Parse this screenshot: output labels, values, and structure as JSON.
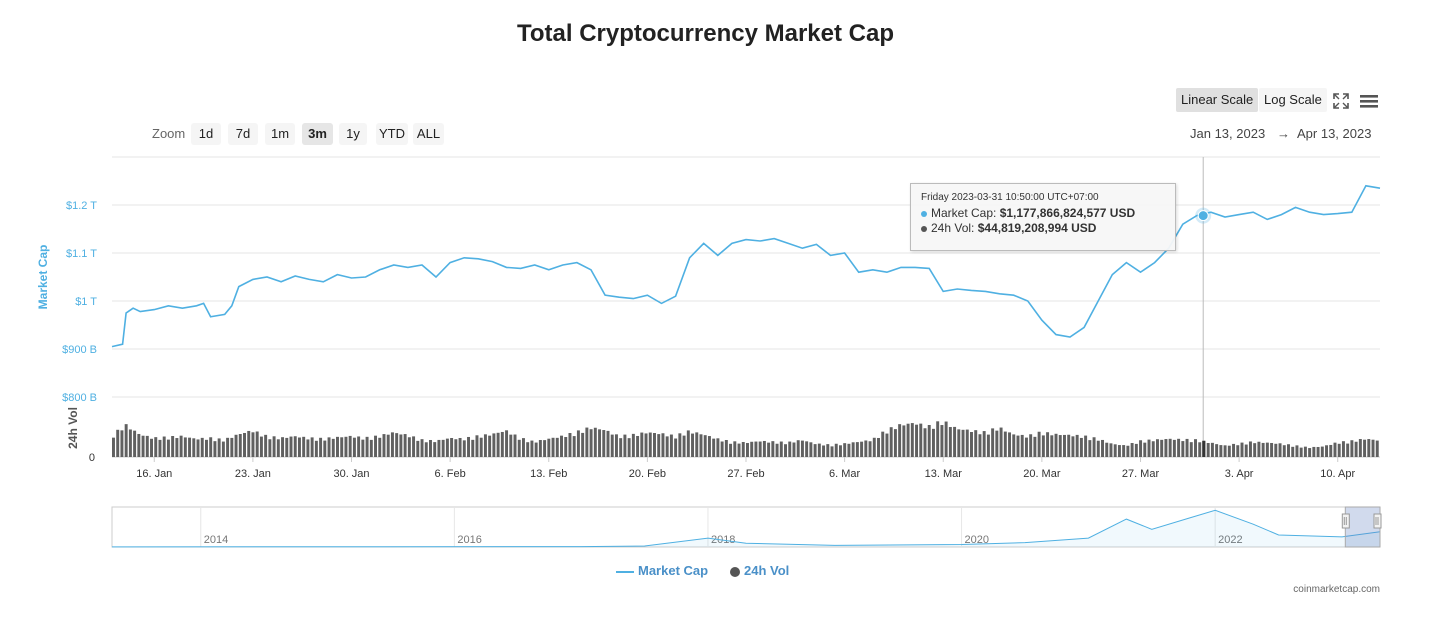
{
  "chart_data": {
    "type": "line",
    "title": "Total Cryptocurrency Market Cap",
    "y_axis_label": "Market Cap",
    "y_ticks": [
      {
        "value": 800,
        "label": "$800 B"
      },
      {
        "value": 900,
        "label": "$900 B"
      },
      {
        "value": 1000,
        "label": "$1 T"
      },
      {
        "value": 1100,
        "label": "$1.1 T"
      },
      {
        "value": 1200,
        "label": "$1.2 T"
      }
    ],
    "ylim": [
      800,
      1300
    ],
    "vol_axis_label": "24h Vol",
    "vol_tick_label": "0",
    "x_ticks": [
      {
        "date": "2023-01-16",
        "label": "16. Jan"
      },
      {
        "date": "2023-01-23",
        "label": "23. Jan"
      },
      {
        "date": "2023-01-30",
        "label": "30. Jan"
      },
      {
        "date": "2023-02-06",
        "label": "6. Feb"
      },
      {
        "date": "2023-02-13",
        "label": "13. Feb"
      },
      {
        "date": "2023-02-20",
        "label": "20. Feb"
      },
      {
        "date": "2023-02-27",
        "label": "27. Feb"
      },
      {
        "date": "2023-03-06",
        "label": "6. Mar"
      },
      {
        "date": "2023-03-13",
        "label": "13. Mar"
      },
      {
        "date": "2023-03-20",
        "label": "20. Mar"
      },
      {
        "date": "2023-03-27",
        "label": "27. Mar"
      },
      {
        "date": "2023-04-03",
        "label": "3. Apr"
      },
      {
        "date": "2023-04-10",
        "label": "10. Apr"
      }
    ],
    "x_range": [
      "2023-01-13",
      "2023-04-13"
    ],
    "grid": true,
    "series": [
      {
        "name": "Market Cap",
        "unit": "billion USD",
        "color": "#4fb0e2",
        "points": [
          [
            "2023-01-13",
            905
          ],
          [
            "2023-01-13T18:00",
            910
          ],
          [
            "2023-01-14",
            975
          ],
          [
            "2023-01-14T12:00",
            985
          ],
          [
            "2023-01-15",
            978
          ],
          [
            "2023-01-16",
            982
          ],
          [
            "2023-01-17",
            990
          ],
          [
            "2023-01-18",
            985
          ],
          [
            "2023-01-19",
            990
          ],
          [
            "2023-01-19T12:00",
            995
          ],
          [
            "2023-01-20",
            967
          ],
          [
            "2023-01-21",
            972
          ],
          [
            "2023-01-21T12:00",
            990
          ],
          [
            "2023-01-22",
            1030
          ],
          [
            "2023-01-23",
            1045
          ],
          [
            "2023-01-24",
            1050
          ],
          [
            "2023-01-25",
            1040
          ],
          [
            "2023-01-26",
            1052
          ],
          [
            "2023-01-27",
            1045
          ],
          [
            "2023-01-28",
            1040
          ],
          [
            "2023-01-29",
            1055
          ],
          [
            "2023-01-30",
            1048
          ],
          [
            "2023-01-31",
            1050
          ],
          [
            "2023-02-01",
            1065
          ],
          [
            "2023-02-02",
            1075
          ],
          [
            "2023-02-03",
            1070
          ],
          [
            "2023-02-04",
            1075
          ],
          [
            "2023-02-05",
            1050
          ],
          [
            "2023-02-06",
            1080
          ],
          [
            "2023-02-07",
            1090
          ],
          [
            "2023-02-08",
            1088
          ],
          [
            "2023-02-09",
            1082
          ],
          [
            "2023-02-10",
            1070
          ],
          [
            "2023-02-11",
            1068
          ],
          [
            "2023-02-12",
            1075
          ],
          [
            "2023-02-13",
            1065
          ],
          [
            "2023-02-14",
            1075
          ],
          [
            "2023-02-15",
            1080
          ],
          [
            "2023-02-16",
            1065
          ],
          [
            "2023-02-17",
            1012
          ],
          [
            "2023-02-18",
            1008
          ],
          [
            "2023-02-19",
            1005
          ],
          [
            "2023-02-20",
            1012
          ],
          [
            "2023-02-21",
            995
          ],
          [
            "2023-02-22",
            1010
          ],
          [
            "2023-02-23",
            1090
          ],
          [
            "2023-02-24",
            1120
          ],
          [
            "2023-02-25",
            1095
          ],
          [
            "2023-02-26",
            1120
          ],
          [
            "2023-02-27",
            1128
          ],
          [
            "2023-02-28",
            1125
          ],
          [
            "2023-03-01",
            1130
          ],
          [
            "2023-03-02",
            1120
          ],
          [
            "2023-03-03",
            1110
          ],
          [
            "2023-03-04",
            1118
          ],
          [
            "2023-03-05",
            1095
          ],
          [
            "2023-03-06",
            1100
          ],
          [
            "2023-03-07",
            1060
          ],
          [
            "2023-03-08",
            1065
          ],
          [
            "2023-03-09",
            1060
          ],
          [
            "2023-03-10",
            1070
          ],
          [
            "2023-03-11",
            1070
          ],
          [
            "2023-03-12",
            1068
          ],
          [
            "2023-03-13",
            1020
          ],
          [
            "2023-03-14",
            1025
          ],
          [
            "2023-03-15",
            1022
          ],
          [
            "2023-03-16",
            1020
          ],
          [
            "2023-03-17",
            1015
          ],
          [
            "2023-03-18",
            1012
          ],
          [
            "2023-03-19",
            1000
          ],
          [
            "2023-03-20",
            960
          ],
          [
            "2023-03-21",
            930
          ],
          [
            "2023-03-22",
            925
          ],
          [
            "2023-03-23",
            945
          ],
          [
            "2023-03-24",
            1000
          ],
          [
            "2023-03-25",
            1055
          ],
          [
            "2023-03-26",
            1080
          ],
          [
            "2023-03-27",
            1060
          ],
          [
            "2023-03-28",
            1080
          ],
          [
            "2023-03-29",
            1110
          ],
          [
            "2023-03-30",
            1160
          ],
          [
            "2023-03-31",
            1178
          ],
          [
            "2023-04-01",
            1185
          ],
          [
            "2023-04-02",
            1175
          ],
          [
            "2023-04-03",
            1180
          ],
          [
            "2023-04-04",
            1185
          ],
          [
            "2023-04-05",
            1170
          ],
          [
            "2023-04-06",
            1180
          ],
          [
            "2023-04-07",
            1195
          ],
          [
            "2023-04-08",
            1185
          ],
          [
            "2023-04-09",
            1180
          ],
          [
            "2023-04-10",
            1182
          ],
          [
            "2023-04-11",
            1185
          ],
          [
            "2023-04-12",
            1240
          ],
          [
            "2023-04-13",
            1235
          ]
        ]
      },
      {
        "name": "24h Vol",
        "unit": "billion USD",
        "color": "#606060",
        "ylim": [
          0,
          130
        ],
        "points": [
          [
            "2023-01-13",
            55
          ],
          [
            "2023-01-14",
            85
          ],
          [
            "2023-01-15",
            60
          ],
          [
            "2023-01-16",
            50
          ],
          [
            "2023-01-17",
            52
          ],
          [
            "2023-01-18",
            55
          ],
          [
            "2023-01-19",
            48
          ],
          [
            "2023-01-20",
            50
          ],
          [
            "2023-01-21",
            45
          ],
          [
            "2023-01-22",
            60
          ],
          [
            "2023-01-23",
            70
          ],
          [
            "2023-01-24",
            55
          ],
          [
            "2023-01-25",
            50
          ],
          [
            "2023-01-26",
            55
          ],
          [
            "2023-01-27",
            50
          ],
          [
            "2023-01-28",
            48
          ],
          [
            "2023-01-29",
            52
          ],
          [
            "2023-01-30",
            55
          ],
          [
            "2023-01-31",
            50
          ],
          [
            "2023-02-01",
            55
          ],
          [
            "2023-02-02",
            65
          ],
          [
            "2023-02-03",
            58
          ],
          [
            "2023-02-04",
            45
          ],
          [
            "2023-02-05",
            42
          ],
          [
            "2023-02-06",
            50
          ],
          [
            "2023-02-07",
            48
          ],
          [
            "2023-02-08",
            55
          ],
          [
            "2023-02-09",
            60
          ],
          [
            "2023-02-10",
            70
          ],
          [
            "2023-02-11",
            50
          ],
          [
            "2023-02-12",
            40
          ],
          [
            "2023-02-13",
            48
          ],
          [
            "2023-02-14",
            55
          ],
          [
            "2023-02-15",
            65
          ],
          [
            "2023-02-16",
            78
          ],
          [
            "2023-02-17",
            72
          ],
          [
            "2023-02-18",
            55
          ],
          [
            "2023-02-19",
            58
          ],
          [
            "2023-02-20",
            65
          ],
          [
            "2023-02-21",
            62
          ],
          [
            "2023-02-22",
            55
          ],
          [
            "2023-02-23",
            68
          ],
          [
            "2023-02-24",
            60
          ],
          [
            "2023-02-25",
            48
          ],
          [
            "2023-02-26",
            40
          ],
          [
            "2023-02-27",
            38
          ],
          [
            "2023-02-28",
            42
          ],
          [
            "2023-03-01",
            40
          ],
          [
            "2023-03-02",
            38
          ],
          [
            "2023-03-03",
            45
          ],
          [
            "2023-03-04",
            35
          ],
          [
            "2023-03-05",
            32
          ],
          [
            "2023-03-06",
            35
          ],
          [
            "2023-03-07",
            40
          ],
          [
            "2023-03-08",
            45
          ],
          [
            "2023-03-09",
            70
          ],
          [
            "2023-03-10",
            85
          ],
          [
            "2023-03-11",
            90
          ],
          [
            "2023-03-12",
            80
          ],
          [
            "2023-03-13",
            95
          ],
          [
            "2023-03-14",
            75
          ],
          [
            "2023-03-15",
            70
          ],
          [
            "2023-03-16",
            65
          ],
          [
            "2023-03-17",
            78
          ],
          [
            "2023-03-18",
            60
          ],
          [
            "2023-03-19",
            55
          ],
          [
            "2023-03-20",
            65
          ],
          [
            "2023-03-21",
            60
          ],
          [
            "2023-03-22",
            58
          ],
          [
            "2023-03-23",
            55
          ],
          [
            "2023-03-24",
            48
          ],
          [
            "2023-03-25",
            35
          ],
          [
            "2023-03-26",
            30
          ],
          [
            "2023-03-27",
            42
          ],
          [
            "2023-03-28",
            45
          ],
          [
            "2023-03-29",
            48
          ],
          [
            "2023-03-30",
            46
          ],
          [
            "2023-03-31",
            44.82
          ],
          [
            "2023-04-01",
            38
          ],
          [
            "2023-04-02",
            30
          ],
          [
            "2023-04-03",
            35
          ],
          [
            "2023-04-04",
            40
          ],
          [
            "2023-04-05",
            38
          ],
          [
            "2023-04-06",
            35
          ],
          [
            "2023-04-07",
            30
          ],
          [
            "2023-04-08",
            25
          ],
          [
            "2023-04-09",
            28
          ],
          [
            "2023-04-10",
            38
          ],
          [
            "2023-04-11",
            42
          ],
          [
            "2023-04-12",
            48
          ],
          [
            "2023-04-13",
            44
          ]
        ]
      }
    ],
    "navigator": {
      "year_labels": [
        "2014",
        "2016",
        "2018",
        "2020",
        "2022"
      ],
      "points": [
        [
          2013.3,
          0.01
        ],
        [
          2017.0,
          0.03
        ],
        [
          2017.5,
          0.08
        ],
        [
          2018.0,
          0.7
        ],
        [
          2018.3,
          0.3
        ],
        [
          2019.0,
          0.13
        ],
        [
          2020.0,
          0.2
        ],
        [
          2020.5,
          0.35
        ],
        [
          2021.0,
          0.7
        ],
        [
          2021.3,
          2.2
        ],
        [
          2021.5,
          1.4
        ],
        [
          2021.8,
          2.3
        ],
        [
          2022.0,
          2.9
        ],
        [
          2022.3,
          1.8
        ],
        [
          2022.5,
          0.95
        ],
        [
          2023.0,
          0.8
        ],
        [
          2023.3,
          1.2
        ]
      ]
    }
  },
  "zoom": {
    "label": "Zoom",
    "buttons": [
      "1d",
      "7d",
      "1m",
      "3m",
      "1y",
      "YTD",
      "ALL"
    ],
    "active": "3m"
  },
  "scale": {
    "linear": "Linear Scale",
    "log": "Log Scale",
    "active": "linear"
  },
  "range": {
    "from": "Jan 13, 2023",
    "arrow": "→",
    "to": "Apr 13, 2023"
  },
  "tooltip": {
    "header": "Friday 2023-03-31 10:50:00 UTC+07:00",
    "cap_label": "Market Cap:",
    "cap_value": "$1,177,866,824,577 USD",
    "vol_label": "24h Vol:",
    "vol_value": "$44,819,208,994 USD",
    "date": "2023-03-31T10:50",
    "cap": 1177.87,
    "vol": 44.82
  },
  "legend": [
    "Market Cap",
    "24h Vol"
  ],
  "credit": "coinmarketcap.com",
  "icons": [
    "fullscreen-icon",
    "menu-icon"
  ]
}
